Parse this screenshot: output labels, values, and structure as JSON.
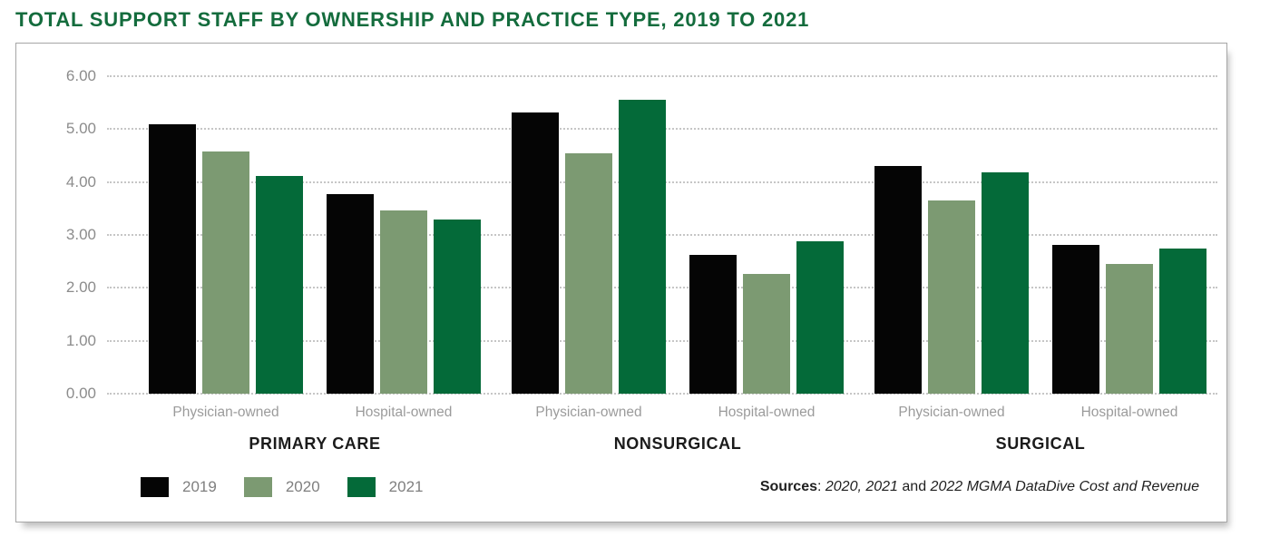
{
  "title": "TOTAL SUPPORT STAFF BY OWNERSHIP AND PRACTICE TYPE, 2019 TO 2021",
  "colors": {
    "title_green": "#146c3d",
    "bar_2019": "#050505",
    "bar_2020": "#7c9a72",
    "bar_2021": "#046a39",
    "gridline": "#c6c6c6",
    "axis_text": "#8c8c8c",
    "subgroup_label": "#9b9b9b",
    "group_label": "#1b1b1b",
    "box_border": "#a6a6a6"
  },
  "chart_data": {
    "type": "bar",
    "title": "TOTAL SUPPORT STAFF BY OWNERSHIP AND PRACTICE TYPE, 2019 TO 2021",
    "xlabel": "",
    "ylabel": "",
    "ylim": [
      0,
      6
    ],
    "yticks": [
      "6.00",
      "5.00",
      "4.00",
      "3.00",
      "2.00",
      "1.00",
      "0.00"
    ],
    "grid": "horizontal-dotted",
    "legend_position": "bottom-left",
    "series": [
      {
        "name": "2019",
        "color": "#050505"
      },
      {
        "name": "2020",
        "color": "#7c9a72"
      },
      {
        "name": "2021",
        "color": "#046a39"
      }
    ],
    "groups": [
      {
        "label": "PRIMARY CARE",
        "subgroups": [
          {
            "label": "Physician-owned",
            "values": [
              5.1,
              4.57,
              4.11
            ]
          },
          {
            "label": "Hospital-owned",
            "values": [
              3.78,
              3.46,
              3.3
            ]
          }
        ]
      },
      {
        "label": "NONSURGICAL",
        "subgroups": [
          {
            "label": "Physician-owned",
            "values": [
              5.32,
              4.55,
              5.56
            ]
          },
          {
            "label": "Hospital-owned",
            "values": [
              2.63,
              2.27,
              2.88
            ]
          }
        ]
      },
      {
        "label": "SURGICAL",
        "subgroups": [
          {
            "label": "Physician-owned",
            "values": [
              4.3,
              3.66,
              4.18
            ]
          },
          {
            "label": "Hospital-owned",
            "values": [
              2.82,
              2.45,
              2.74
            ]
          }
        ]
      }
    ]
  },
  "legend": {
    "items": [
      {
        "label": "2019",
        "color": "#050505"
      },
      {
        "label": "2020",
        "color": "#7c9a72"
      },
      {
        "label": "2021",
        "color": "#046a39"
      }
    ]
  },
  "source": {
    "prefix": "Sources",
    "separator": ": ",
    "italic1": "2020, 2021",
    "connector": " and ",
    "italic2": "2022 MGMA DataDive Cost and Revenue"
  }
}
